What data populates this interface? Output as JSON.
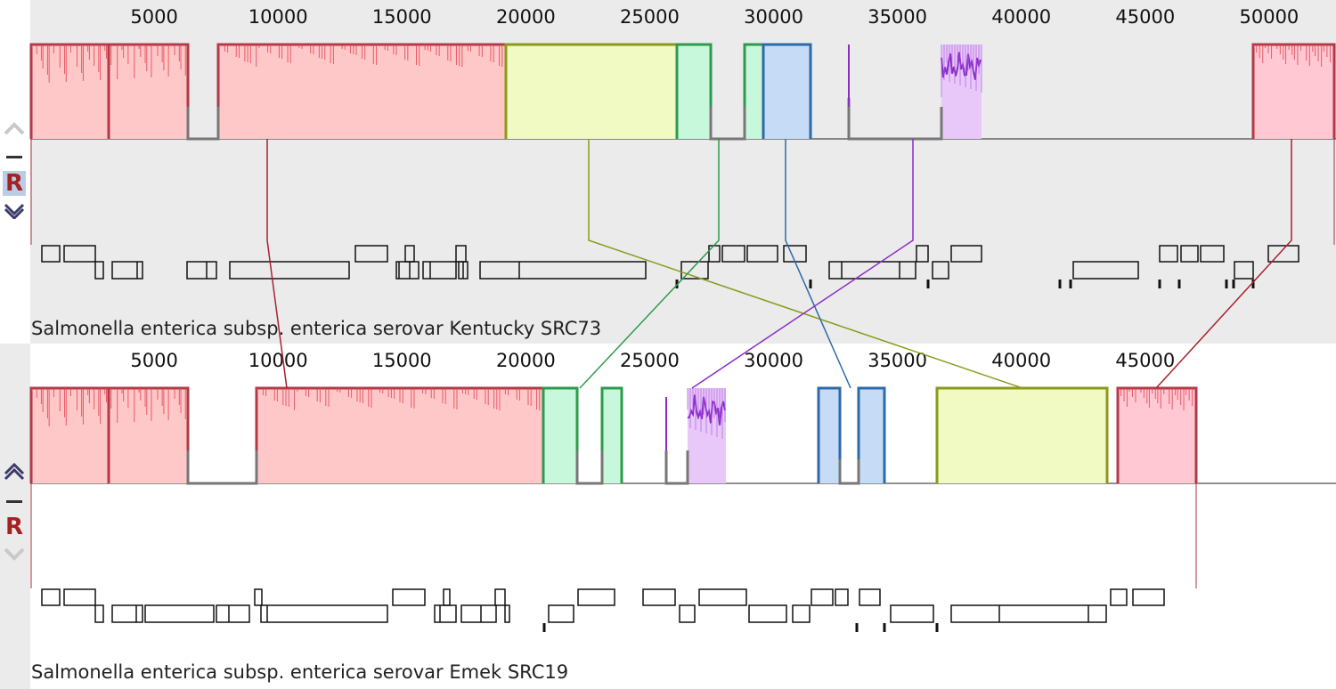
{
  "genomes": [
    {
      "name": "Salmonella enterica subsp. enterica serovar Kentucky SRC73",
      "controls": {
        "up": "up-arrow",
        "minus": "minus",
        "reference": "R",
        "down": "down-arrow"
      },
      "ticks": [
        5000,
        10000,
        15000,
        20000,
        25000,
        30000,
        35000,
        40000,
        45000,
        50000
      ]
    },
    {
      "name": "Salmonella enterica subsp. enterica serovar Emek SRC19",
      "controls": {
        "up": "up-arrow",
        "minus": "minus",
        "reference": "R",
        "down": "down-arrow"
      },
      "ticks": [
        5000,
        10000,
        15000,
        20000,
        25000,
        30000,
        35000,
        40000,
        45000
      ]
    }
  ],
  "colors": {
    "red": "#b03a48",
    "red_fill": "#ffc8c8",
    "pink_fill": "#ffc8d2",
    "yellow": "#8a9a1a",
    "yellow_fill": "#f2fac4",
    "green": "#2e9a4e",
    "green_fill": "#c8f8dc",
    "blue": "#2d6aa8",
    "blue_fill": "#c6dcf6",
    "purple": "#8a2bc8",
    "purple_fill": "#e8c8f8",
    "gray_line": "#777777"
  }
}
